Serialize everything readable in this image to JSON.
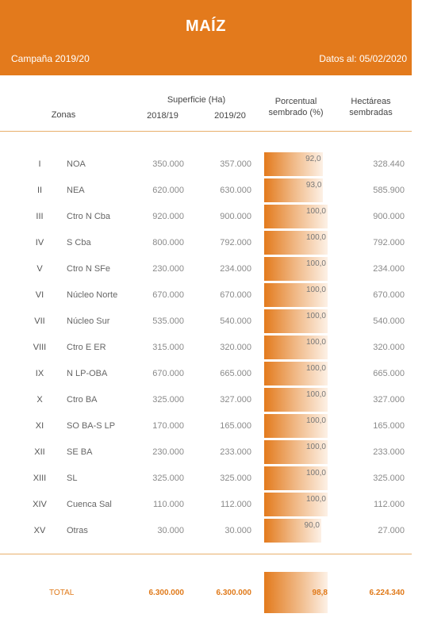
{
  "header": {
    "title": "MAÍZ",
    "campaign": "Campaña 2019/20",
    "date": "Datos al: 05/02/2020"
  },
  "columns": {
    "zonas": "Zonas",
    "superficie": "Superficie (Ha)",
    "y1": "2018/19",
    "y2": "2019/20",
    "pct_line1": "Porcentual",
    "pct_line2": "sembrado (%)",
    "ha_line1": "Hectáreas",
    "ha_line2": "sembradas"
  },
  "colors": {
    "accent": "#e37a1c"
  },
  "rows": [
    {
      "num": "I",
      "zone": "NOA",
      "s18": "350.000",
      "s19": "357.000",
      "pct": "92,0",
      "pct_value": 92.0,
      "ha": "328.440"
    },
    {
      "num": "II",
      "zone": "NEA",
      "s18": "620.000",
      "s19": "630.000",
      "pct": "93,0",
      "pct_value": 93.0,
      "ha": "585.900"
    },
    {
      "num": "III",
      "zone": "Ctro N Cba",
      "s18": "920.000",
      "s19": "900.000",
      "pct": "100,0",
      "pct_value": 100.0,
      "ha": "900.000"
    },
    {
      "num": "IV",
      "zone": "S Cba",
      "s18": "800.000",
      "s19": "792.000",
      "pct": "100,0",
      "pct_value": 100.0,
      "ha": "792.000"
    },
    {
      "num": "V",
      "zone": "Ctro N SFe",
      "s18": "230.000",
      "s19": "234.000",
      "pct": "100,0",
      "pct_value": 100.0,
      "ha": "234.000"
    },
    {
      "num": "VI",
      "zone": "Núcleo Norte",
      "s18": "670.000",
      "s19": "670.000",
      "pct": "100,0",
      "pct_value": 100.0,
      "ha": "670.000"
    },
    {
      "num": "VII",
      "zone": "Núcleo Sur",
      "s18": "535.000",
      "s19": "540.000",
      "pct": "100,0",
      "pct_value": 100.0,
      "ha": "540.000"
    },
    {
      "num": "VIII",
      "zone": "Ctro E ER",
      "s18": "315.000",
      "s19": "320.000",
      "pct": "100,0",
      "pct_value": 100.0,
      "ha": "320.000"
    },
    {
      "num": "IX",
      "zone": "N LP-OBA",
      "s18": "670.000",
      "s19": "665.000",
      "pct": "100,0",
      "pct_value": 100.0,
      "ha": "665.000"
    },
    {
      "num": "X",
      "zone": "Ctro BA",
      "s18": "325.000",
      "s19": "327.000",
      "pct": "100,0",
      "pct_value": 100.0,
      "ha": "327.000"
    },
    {
      "num": "XI",
      "zone": "SO BA-S LP",
      "s18": "170.000",
      "s19": "165.000",
      "pct": "100,0",
      "pct_value": 100.0,
      "ha": "165.000"
    },
    {
      "num": "XII",
      "zone": "SE BA",
      "s18": "230.000",
      "s19": "233.000",
      "pct": "100,0",
      "pct_value": 100.0,
      "ha": "233.000"
    },
    {
      "num": "XIII",
      "zone": "SL",
      "s18": "325.000",
      "s19": "325.000",
      "pct": "100,0",
      "pct_value": 100.0,
      "ha": "325.000"
    },
    {
      "num": "XIV",
      "zone": "Cuenca Sal",
      "s18": "110.000",
      "s19": "112.000",
      "pct": "100,0",
      "pct_value": 100.0,
      "ha": "112.000"
    },
    {
      "num": "XV",
      "zone": "Otras",
      "s18": "30.000",
      "s19": "30.000",
      "pct": "90,0",
      "pct_value": 90.0,
      "ha": "27.000"
    }
  ],
  "total": {
    "label": "TOTAL",
    "s18": "6.300.000",
    "s19": "6.300.000",
    "pct": "98,8",
    "ha": "6.224.340"
  }
}
